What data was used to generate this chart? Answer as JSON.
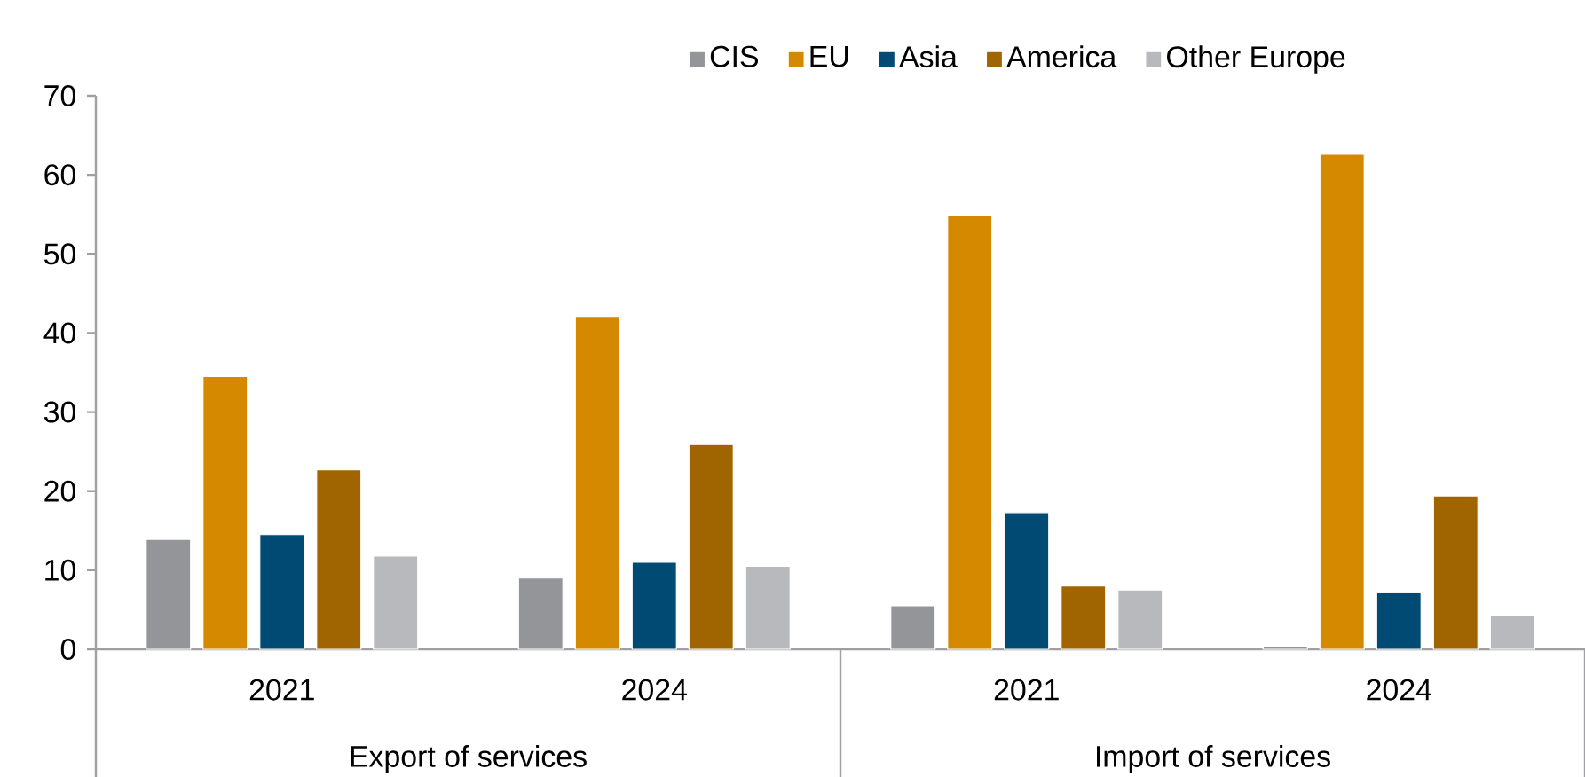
{
  "chart_data": {
    "type": "bar",
    "categories": [
      "2021",
      "2024",
      "2021",
      "2024"
    ],
    "series": [
      {
        "name": "CIS",
        "color": "#939598",
        "values": [
          13.9,
          9.0,
          5.5,
          0.4
        ]
      },
      {
        "name": "EU",
        "color": "#d58900",
        "values": [
          34.5,
          42.1,
          54.8,
          62.6
        ]
      },
      {
        "name": "Asia",
        "color": "#004a73",
        "values": [
          14.5,
          11.0,
          17.3,
          7.2
        ]
      },
      {
        "name": "America",
        "color": "#a06400",
        "values": [
          22.7,
          25.9,
          8.0,
          19.4
        ]
      },
      {
        "name": "Other Europe",
        "color": "#b8b9bc",
        "values": [
          11.8,
          10.5,
          7.5,
          4.3
        ]
      }
    ],
    "ylim": [
      0,
      70
    ],
    "yticks": [
      0,
      10,
      20,
      30,
      40,
      50,
      60,
      70
    ],
    "legend": "top",
    "annotations": [
      "Export of services",
      "Import of services"
    ]
  }
}
